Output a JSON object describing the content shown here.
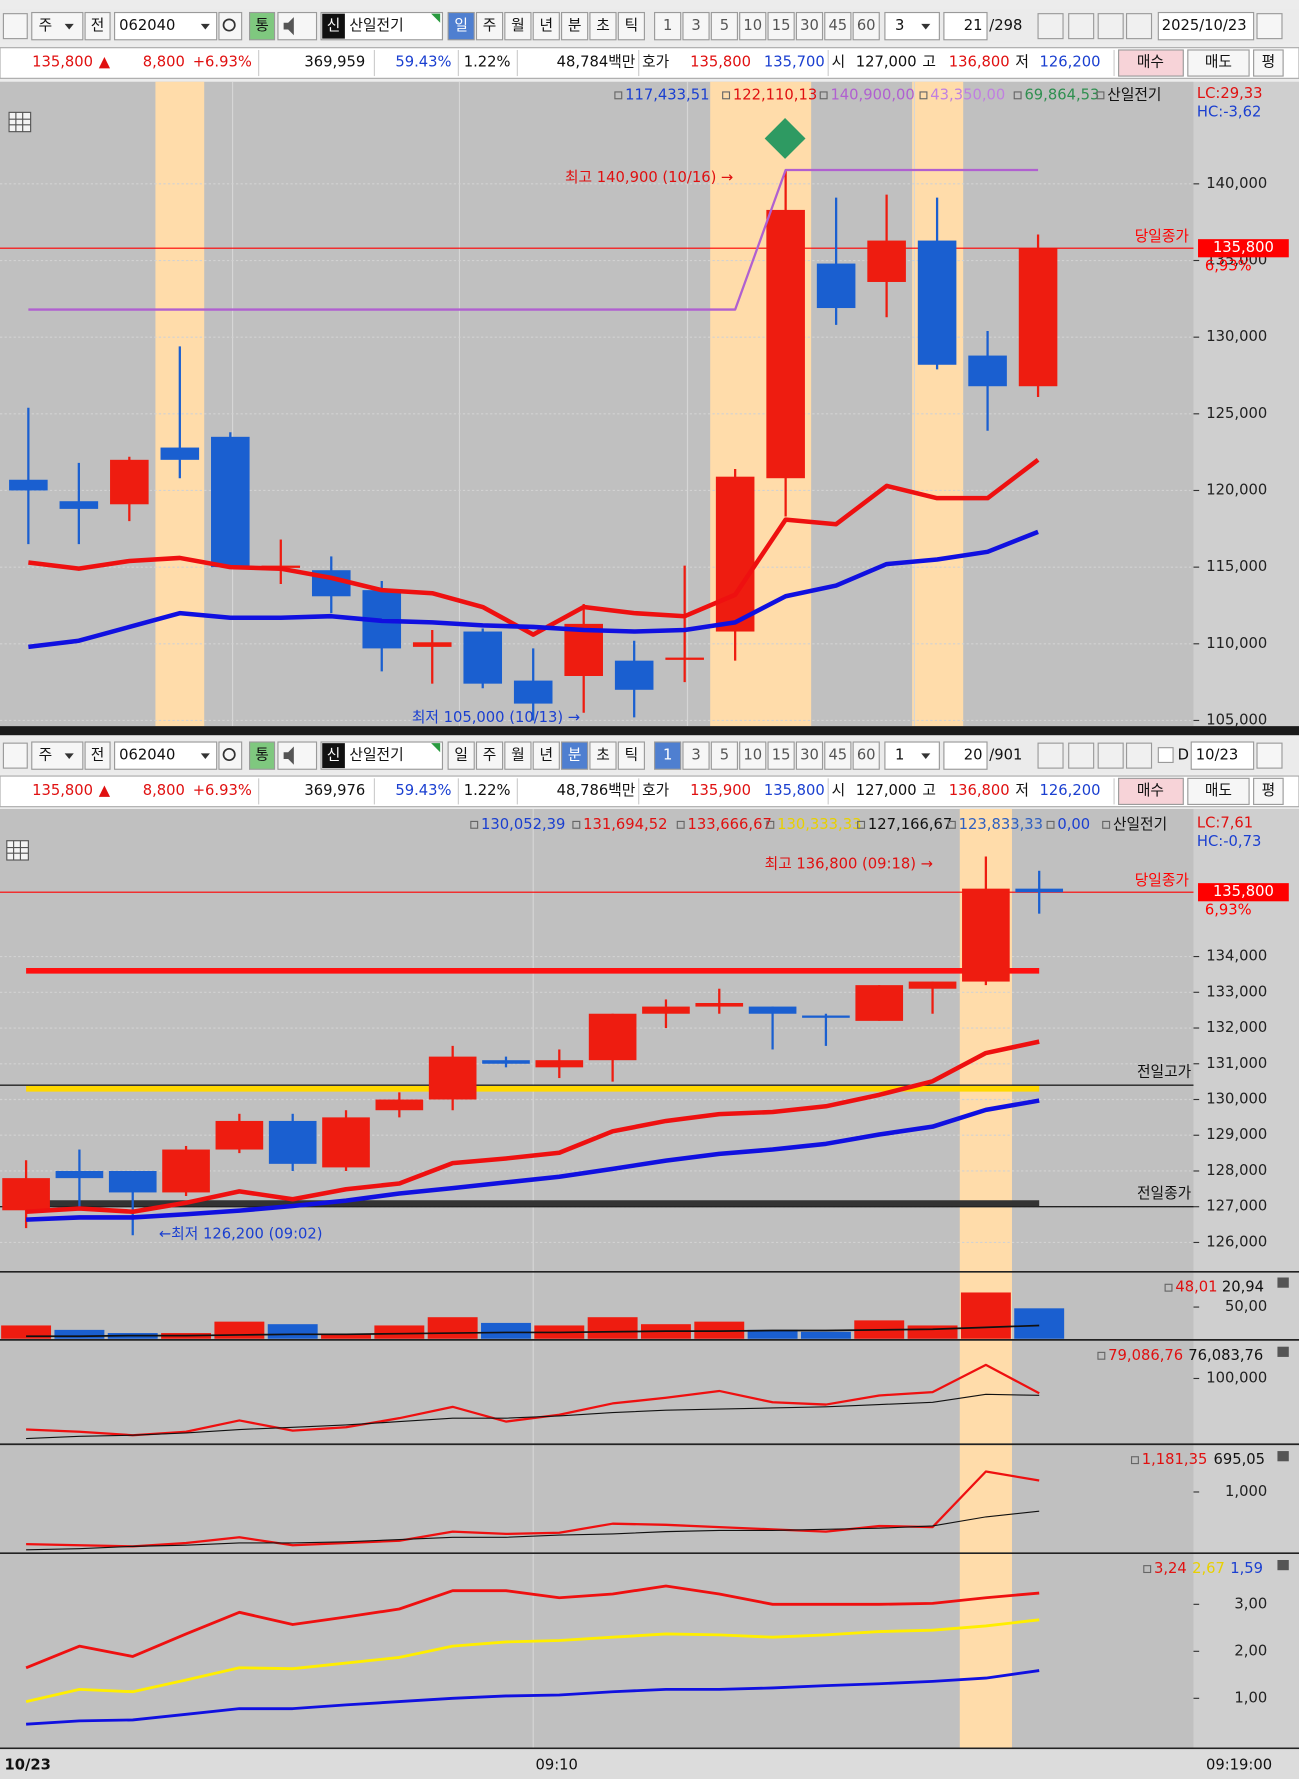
{
  "top": {
    "toolbar": {
      "period": "주",
      "compare": "전",
      "code": "062040",
      "tong": "통",
      "sin": "신",
      "name": "산일전기",
      "units": [
        "일",
        "주",
        "월",
        "년",
        "분",
        "초",
        "틱"
      ],
      "intervals": [
        "1",
        "3",
        "5",
        "10",
        "15",
        "30",
        "45",
        "60"
      ],
      "interval_select": "3",
      "count": "21",
      "total": "/298",
      "date": "2025/10/23"
    },
    "quote": {
      "price": "135,800",
      "arrow": "▲",
      "change": "8,800",
      "rate": "+6.93%",
      "volume": "369,959",
      "ratio": "59.43%",
      "turnover": "1.22%",
      "amount": "48,784백만",
      "hoga": "호가",
      "ask": "135,800",
      "bid": "135,700",
      "open_label": "시",
      "open": "127,000",
      "high_label": "고",
      "high": "136,800",
      "low_label": "저",
      "low": "126,200",
      "buy": "매수",
      "sell": "매도",
      "avg": "평"
    },
    "chart": {
      "type": "candlestick",
      "legend": [
        {
          "text": "117,433,51",
          "color": "#1a3fd0"
        },
        {
          "text": "122,110,13",
          "color": "#e01010"
        },
        {
          "text": "140,900,00",
          "color": "#b060d0"
        },
        {
          "text": "43,350,00",
          "color": "#c080e0"
        },
        {
          "text": "69,864,53",
          "color": "#2f8f50"
        },
        {
          "text": "산일전기",
          "color": "#111111"
        }
      ],
      "lc": "LC:29,33",
      "hc": "HC:-3,62",
      "ylim": [
        104630,
        146660
      ],
      "yticks": [
        {
          "value": 105000,
          "label": "105,000"
        },
        {
          "value": 110000,
          "label": "110,000"
        },
        {
          "value": 115000,
          "label": "115,000"
        },
        {
          "value": 120000,
          "label": "120,000"
        },
        {
          "value": 125000,
          "label": "125,000"
        },
        {
          "value": 130000,
          "label": "130,000"
        },
        {
          "value": 135000,
          "label": "135,000"
        },
        {
          "value": 140000,
          "label": "140,000"
        }
      ],
      "up_color": "#ee1c10",
      "down_color": "#1a5fd0",
      "candles": {
        "open": [
          120700,
          119300,
          119100,
          122800,
          123500,
          115000,
          114800,
          113500,
          109800,
          110800,
          107600,
          107900,
          108900,
          109000,
          110800,
          120800,
          134800,
          133600,
          136300,
          128800,
          126800
        ],
        "high": [
          125400,
          121800,
          122200,
          129400,
          123800,
          116800,
          115700,
          114100,
          110900,
          111000,
          109700,
          112600,
          110200,
          115100,
          121400,
          140900,
          139100,
          139300,
          139100,
          130400,
          136700
        ],
        "low": [
          116500,
          116500,
          118000,
          120800,
          115000,
          113900,
          112000,
          108200,
          107400,
          107100,
          105000,
          105500,
          105200,
          107500,
          108900,
          118300,
          130800,
          131300,
          127900,
          123900,
          126100
        ],
        "close": [
          120000,
          118800,
          122000,
          122000,
          115000,
          115100,
          113100,
          109700,
          110100,
          107400,
          106100,
          111300,
          107000,
          109100,
          120900,
          138300,
          131900,
          136300,
          128200,
          126800,
          135800
        ]
      },
      "lines": [
        {
          "color": "#b060d0",
          "width": 2,
          "values": [
            131800,
            131800,
            131800,
            131800,
            131800,
            131800,
            131800,
            131800,
            131800,
            131800,
            131800,
            131800,
            131800,
            131800,
            131800,
            140900,
            140900,
            140900,
            140900,
            140900,
            140900
          ]
        },
        {
          "color": "#ee1010",
          "width": 4,
          "values": [
            115300,
            114900,
            115400,
            115600,
            115000,
            114900,
            114300,
            113500,
            113300,
            112400,
            110600,
            112400,
            112000,
            111800,
            113200,
            118100,
            117800,
            120300,
            119500,
            119500,
            122000
          ]
        },
        {
          "color": "#1010e0",
          "width": 4,
          "values": [
            109800,
            110200,
            111100,
            112000,
            111700,
            111700,
            111800,
            111500,
            111400,
            111200,
            111100,
            110900,
            110800,
            110900,
            111400,
            113100,
            113800,
            115200,
            115500,
            116000,
            117300
          ]
        }
      ],
      "price_line": {
        "value": 135800,
        "label": "당일종가",
        "price_label": "135,800",
        "change_label": "6,93%",
        "color": "#ff0000"
      },
      "annotations": [
        {
          "text": "최고 140,900 (10/16) →",
          "color": "#e01010"
        },
        {
          "text": "최저 105,000 (10/13) →",
          "color": "#1a3fd0"
        }
      ]
    }
  },
  "bottom": {
    "toolbar": {
      "period": "주",
      "compare": "전",
      "code": "062040",
      "tong": "통",
      "sin": "신",
      "name": "산일전기",
      "units": [
        "일",
        "주",
        "월",
        "년",
        "분",
        "초",
        "틱"
      ],
      "intervals": [
        "1",
        "3",
        "5",
        "10",
        "15",
        "30",
        "45",
        "60"
      ],
      "interval_select": "1",
      "count": "20",
      "total": "/901",
      "d_label": "D",
      "date": "10/23"
    },
    "quote": {
      "price": "135,800",
      "arrow": "▲",
      "change": "8,800",
      "rate": "+6.93%",
      "volume": "369,976",
      "ratio": "59.43%",
      "turnover": "1.22%",
      "amount": "48,786백만",
      "hoga": "호가",
      "ask": "135,900",
      "bid": "135,800",
      "open_label": "시",
      "open": "127,000",
      "high_label": "고",
      "high": "136,800",
      "low_label": "저",
      "low": "126,200",
      "buy": "매수",
      "sell": "매도",
      "avg": "평"
    },
    "chart": {
      "type": "candlestick",
      "legend": [
        {
          "text": "130,052,39",
          "color": "#1a3fd0"
        },
        {
          "text": "131,694,52",
          "color": "#e01010"
        },
        {
          "text": "133,666,67",
          "color": "#e01010"
        },
        {
          "text": "130,333,33",
          "color": "#e8d000"
        },
        {
          "text": "127,166,67",
          "color": "#111111"
        },
        {
          "text": "123,833,33",
          "color": "#3060c0"
        },
        {
          "text": "0,00",
          "color": "#1a3fd0"
        },
        {
          "text": "산일전기",
          "color": "#111111"
        }
      ],
      "lc": "LC:7,61",
      "hc": "HC:-0,73",
      "ylim": [
        125210,
        138130
      ],
      "yticks": [
        {
          "value": 126000,
          "label": "126,000"
        },
        {
          "value": 127000,
          "label": "127,000"
        },
        {
          "value": 128000,
          "label": "128,000"
        },
        {
          "value": 129000,
          "label": "129,000"
        },
        {
          "value": 130000,
          "label": "130,000"
        },
        {
          "value": 131000,
          "label": "131,000"
        },
        {
          "value": 132000,
          "label": "132,000"
        },
        {
          "value": 133000,
          "label": "133,000"
        },
        {
          "value": 134000,
          "label": "134,000"
        }
      ],
      "up_color": "#ee1c10",
      "down_color": "#1a5fd0",
      "candles": {
        "open": [
          126900,
          128000,
          128000,
          127400,
          128600,
          129400,
          128100,
          129700,
          130000,
          131100,
          130900,
          131100,
          132400,
          132600,
          132600,
          132350,
          132200,
          133100,
          133300,
          135900
        ],
        "high": [
          128300,
          128600,
          128000,
          128700,
          129600,
          129600,
          129700,
          130200,
          131500,
          131200,
          131400,
          132400,
          132800,
          133100,
          132600,
          132400,
          133200,
          133300,
          136800,
          136400
        ],
        "low": [
          126400,
          126900,
          126200,
          127300,
          128500,
          128000,
          128000,
          129500,
          129700,
          130900,
          130600,
          130500,
          132000,
          132400,
          131400,
          131500,
          132200,
          132400,
          133200,
          135200
        ],
        "close": [
          127800,
          127800,
          127400,
          128600,
          129400,
          128200,
          129500,
          130000,
          131200,
          131000,
          131100,
          132400,
          132600,
          132700,
          132400,
          132300,
          133200,
          133300,
          135900,
          135800
        ]
      },
      "levels": [
        {
          "value": 133600,
          "color": "#ff1010",
          "width": 5
        },
        {
          "value": 130300,
          "color": "#ffd800",
          "width": 5
        },
        {
          "value": 127100,
          "color": "#333333",
          "width": 5
        },
        {
          "value": 130400,
          "color": "#222222",
          "width": 1.2,
          "label": "전일고가"
        },
        {
          "value": 127000,
          "color": "#222222",
          "width": 1.2,
          "label": "전일종가"
        }
      ],
      "lines": [
        {
          "color": "#ee1010",
          "width": 4,
          "values": [
            126860,
            126950,
            126860,
            127110,
            127430,
            127210,
            127490,
            127650,
            128220,
            128350,
            128510,
            129110,
            129400,
            129590,
            129650,
            129810,
            130130,
            130510,
            131300,
            131620
          ]
        },
        {
          "color": "#1010e0",
          "width": 4,
          "values": [
            126640,
            126700,
            126700,
            126790,
            126890,
            127020,
            127170,
            127370,
            127520,
            127680,
            127840,
            128060,
            128290,
            128480,
            128600,
            128760,
            129020,
            129240,
            129710,
            129970
          ]
        }
      ],
      "price_line": {
        "value": 135800,
        "label": "당일종가",
        "price_label": "135,800",
        "change_label": "6,93%",
        "color": "#ff0000"
      },
      "annotations": [
        {
          "text": "최고 136,800 (09:18) →",
          "color": "#e01010"
        },
        {
          "text": "←최저 126,200 (09:02)",
          "color": "#1a3fd0"
        }
      ]
    },
    "subcharts": [
      {
        "type": "bar",
        "ylim": [
          0,
          102
        ],
        "yticks": [
          {
            "value": 50,
            "label": "50,00"
          }
        ],
        "bars": [
          21,
          14,
          9,
          9,
          27,
          23,
          7,
          21,
          34,
          25,
          21,
          34,
          23,
          27,
          14,
          11,
          29,
          21,
          73,
          48.01
        ],
        "lines": [
          {
            "color": "#111111",
            "width": 1.5,
            "values": [
              4,
              4,
              5,
              5,
              6,
              7,
              7,
              8,
              9,
              10,
              10,
              11,
              12,
              12,
              13,
              13,
              14,
              15,
              18,
              20.94
            ]
          }
        ],
        "legend": [
          {
            "text": "48,01",
            "color": "#e01010"
          },
          {
            "text": "20,94",
            "color": "#111111"
          }
        ]
      },
      {
        "type": "line",
        "ylim": [
          8290,
          151490
        ],
        "yticks": [
          {
            "value": 100000,
            "label": "100,000"
          }
        ],
        "lines": [
          {
            "color": "#ee1010",
            "width": 2,
            "values": [
              27600,
              24400,
              19550,
              24400,
              40470,
              25990,
              30810,
              43690,
              59780,
              38860,
              48510,
              64600,
              72650,
              82300,
              66210,
              62990,
              75870,
              80690,
              119310,
              79086.76
            ]
          },
          {
            "color": "#111111",
            "width": 1,
            "values": [
              14720,
              17940,
              19550,
              22770,
              27600,
              30810,
              34030,
              38860,
              43690,
              43690,
              46900,
              51730,
              54950,
              56560,
              58170,
              59780,
              62990,
              66210,
              77470,
              76083.76
            ]
          }
        ],
        "legend": [
          {
            "text": "79,086,76",
            "color": "#e01010"
          },
          {
            "text": "76,083,76",
            "color": "#111111"
          }
        ]
      },
      {
        "type": "line",
        "ylim": [
          47,
          1721
        ],
        "yticks": [
          {
            "value": 1000,
            "label": "1,000"
          }
        ],
        "lines": [
          {
            "color": "#ee1010",
            "width": 2,
            "values": [
              173,
              155,
              137,
              191,
              281,
              155,
              191,
              227,
              371,
              335,
              353,
              497,
              479,
              443,
              407,
              371,
              461,
              443,
              1325,
              1181.35
            ]
          },
          {
            "color": "#111111",
            "width": 1,
            "values": [
              83,
              101,
              137,
              155,
              191,
              191,
              209,
              245,
              281,
              281,
              317,
              335,
              371,
              389,
              389,
              407,
              425,
              461,
              605,
              695.05
            ]
          }
        ],
        "legend": [
          {
            "text": "1,181,35",
            "color": "#e01010"
          },
          {
            "text": "695,05",
            "color": "#111111"
          }
        ]
      },
      {
        "type": "line",
        "ylim": [
          -0.04,
          4.04
        ],
        "yticks": [
          {
            "value": 3,
            "label": "3,00"
          },
          {
            "value": 2,
            "label": "2,00"
          },
          {
            "value": 1,
            "label": "1,00"
          }
        ],
        "lines": [
          {
            "color": "#ee1010",
            "width": 2.5,
            "values": [
              1.65,
              2.11,
              1.89,
              2.37,
              2.83,
              2.57,
              2.73,
              2.9,
              3.29,
              3.29,
              3.14,
              3.22,
              3.39,
              3.22,
              3.0,
              3.0,
              3.0,
              3.02,
              3.14,
              3.24
            ]
          },
          {
            "color": "#ffee00",
            "width": 2.5,
            "values": [
              0.93,
              1.19,
              1.14,
              1.39,
              1.65,
              1.63,
              1.75,
              1.87,
              2.11,
              2.2,
              2.23,
              2.3,
              2.37,
              2.35,
              2.3,
              2.35,
              2.42,
              2.45,
              2.54,
              2.67
            ]
          },
          {
            "color": "#1010e0",
            "width": 2.5,
            "values": [
              0.45,
              0.52,
              0.54,
              0.66,
              0.78,
              0.78,
              0.86,
              0.93,
              1.0,
              1.05,
              1.07,
              1.14,
              1.19,
              1.19,
              1.22,
              1.27,
              1.31,
              1.36,
              1.43,
              1.59
            ]
          }
        ],
        "legend": [
          {
            "text": "3,24",
            "color": "#e01010"
          },
          {
            "text": "2,67",
            "color": "#e8d000"
          },
          {
            "text": "1,59",
            "color": "#1a3fd0"
          }
        ]
      }
    ],
    "x_labels": [
      "10/23",
      "09:10",
      "09:19:00"
    ]
  }
}
